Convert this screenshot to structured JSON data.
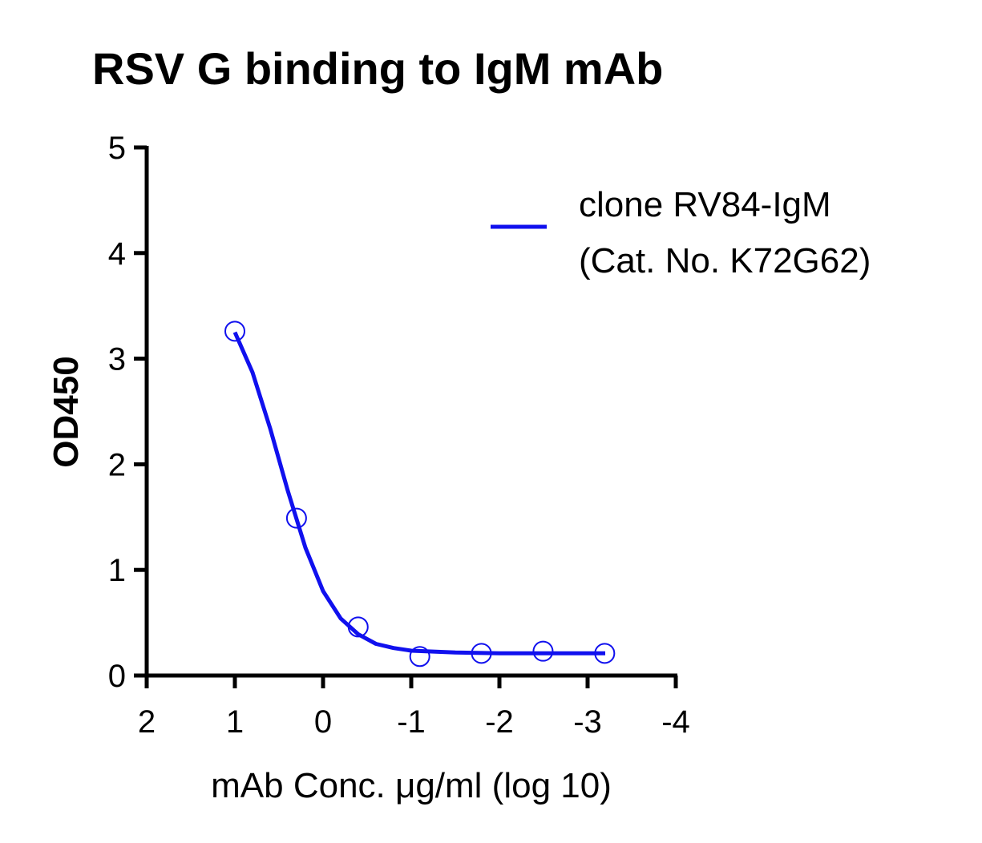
{
  "chart_data": {
    "type": "line",
    "title": "RSV G binding to IgM mAb",
    "xlabel": "mAb Conc. μg/ml (log 10)",
    "ylabel": "OD450",
    "xlim": [
      2,
      -4
    ],
    "ylim": [
      0,
      5
    ],
    "x_reversed": true,
    "xticks": [
      "2",
      "1",
      "0",
      "-1",
      "-2",
      "-3",
      "-4"
    ],
    "yticks": [
      "0",
      "1",
      "2",
      "3",
      "4",
      "5"
    ],
    "grid": false,
    "legend_position": "top-right",
    "series": [
      {
        "name": "clone RV84-IgM (Cat. No. K72G62)",
        "legend_lines": [
          "clone RV84-IgM",
          "(Cat. No. K72G62)"
        ],
        "color": "#1010ee",
        "points": {
          "x": [
            1,
            0.301,
            -0.398,
            -1.097,
            -1.796,
            -2.495,
            -3.194
          ],
          "y": [
            3.26,
            1.49,
            0.46,
            0.18,
            0.21,
            0.23,
            0.21
          ]
        },
        "curve": {
          "x": [
            1,
            0.8,
            0.6,
            0.4,
            0.2,
            0,
            -0.2,
            -0.4,
            -0.6,
            -0.8,
            -1.0,
            -1.5,
            -2.0,
            -2.5,
            -3.2
          ],
          "y": [
            3.25,
            2.87,
            2.34,
            1.75,
            1.21,
            0.8,
            0.54,
            0.39,
            0.3,
            0.26,
            0.235,
            0.218,
            0.21,
            0.21,
            0.21
          ]
        }
      }
    ]
  }
}
